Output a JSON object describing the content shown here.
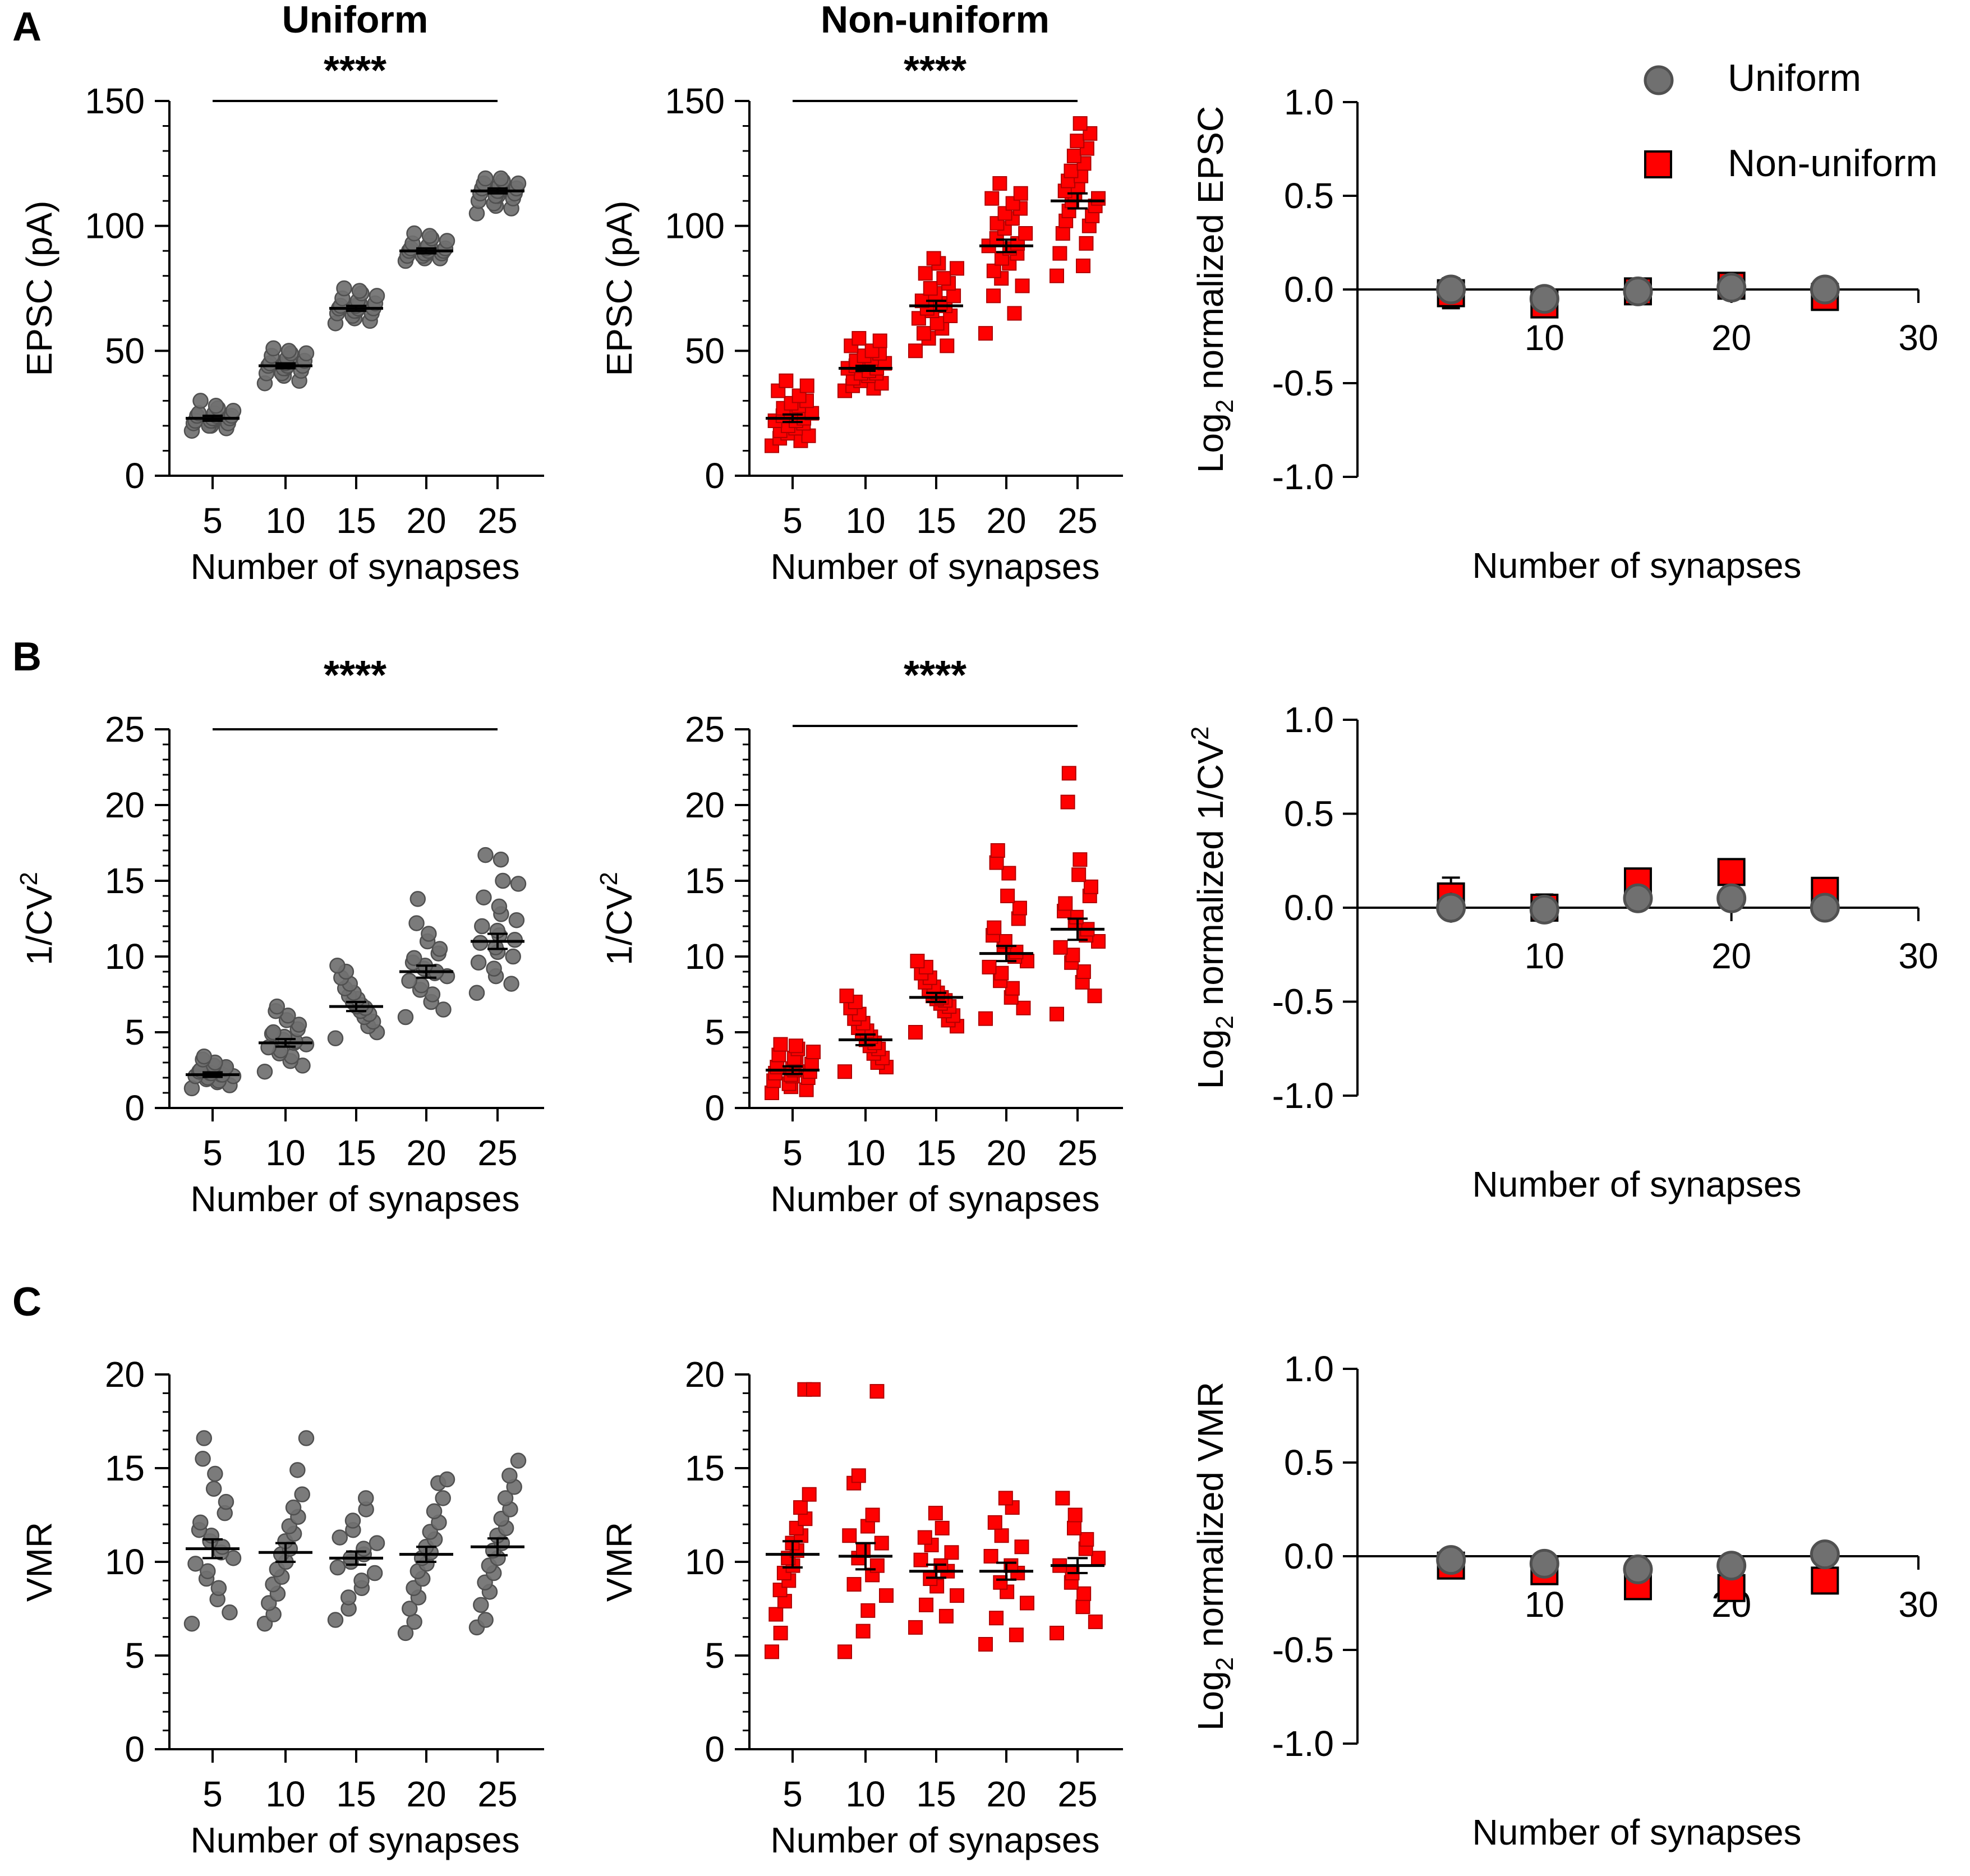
{
  "colors": {
    "uniform_fill": "#707070",
    "uniform_marker": "#505050",
    "nonuniform_fill": "#ff0000",
    "mean_bar": "#000000"
  },
  "legend": {
    "uniform": "Uniform",
    "nonuniform": "Non-uniform"
  },
  "chart_data": [
    {
      "id": "A-uniform",
      "panel": "A",
      "type": "scatter",
      "title": "Uniform",
      "significance": "****",
      "xlabel": "Number of synapses",
      "ylabel": "EPSC (pA)",
      "categories": [
        "5",
        "10",
        "15",
        "20",
        "25"
      ],
      "yticks": [
        "0",
        "50",
        "100",
        "150"
      ],
      "ylim": [
        0,
        150
      ],
      "ytick_step": 50,
      "yminor_step": 10,
      "series": "uniform",
      "means": [
        23,
        44,
        67,
        90,
        114
      ],
      "sems": [
        1,
        1,
        1,
        1,
        1
      ],
      "points": [
        [
          18,
          19,
          20,
          20,
          21,
          21,
          22,
          22,
          22,
          23,
          23,
          23,
          24,
          24,
          24,
          25,
          25,
          26,
          27,
          28,
          30
        ],
        [
          37,
          38,
          40,
          41,
          41,
          42,
          43,
          43,
          44,
          44,
          44,
          45,
          45,
          46,
          46,
          47,
          48,
          49,
          49,
          50,
          51
        ],
        [
          61,
          62,
          63,
          64,
          65,
          65,
          66,
          66,
          67,
          67,
          67,
          68,
          68,
          69,
          69,
          70,
          71,
          72,
          73,
          74,
          75
        ],
        [
          86,
          87,
          87,
          88,
          88,
          89,
          89,
          89,
          90,
          90,
          90,
          91,
          91,
          91,
          92,
          92,
          93,
          94,
          95,
          96,
          97
        ],
        [
          105,
          107,
          108,
          109,
          110,
          111,
          112,
          112,
          113,
          113,
          114,
          114,
          115,
          115,
          116,
          116,
          117,
          117,
          118,
          119,
          119
        ]
      ]
    },
    {
      "id": "A-nonuniform",
      "panel": "A",
      "type": "scatter",
      "title": "Non-uniform",
      "significance": "****",
      "xlabel": "Number of synapses",
      "ylabel": "EPSC (pA)",
      "categories": [
        "5",
        "10",
        "15",
        "20",
        "25"
      ],
      "yticks": [
        "0",
        "50",
        "100",
        "150"
      ],
      "ylim": [
        0,
        150
      ],
      "ytick_step": 50,
      "yminor_step": 10,
      "series": "nonuniform",
      "means": [
        23,
        43,
        68,
        92,
        110
      ],
      "sems": [
        1.5,
        1,
        2,
        2.5,
        3
      ],
      "points": [
        [
          12,
          14,
          15,
          16,
          17,
          18,
          19,
          20,
          21,
          22,
          22,
          23,
          24,
          25,
          26,
          27,
          28,
          29,
          30,
          32,
          34,
          36,
          38
        ],
        [
          34,
          35,
          36,
          37,
          38,
          39,
          40,
          41,
          41,
          42,
          43,
          43,
          44,
          45,
          46,
          46,
          47,
          48,
          49,
          50,
          52,
          54,
          55
        ],
        [
          50,
          52,
          55,
          57,
          59,
          61,
          63,
          64,
          66,
          67,
          68,
          69,
          70,
          72,
          73,
          75,
          77,
          79,
          81,
          83,
          85,
          87
        ],
        [
          57,
          65,
          72,
          76,
          79,
          82,
          85,
          87,
          89,
          91,
          92,
          93,
          95,
          97,
          99,
          101,
          103,
          105,
          107,
          109,
          111,
          113,
          117
        ],
        [
          80,
          84,
          89,
          93,
          97,
          100,
          102,
          104,
          106,
          108,
          110,
          111,
          113,
          114,
          116,
          118,
          120,
          122,
          125,
          128,
          131,
          134,
          137,
          141
        ]
      ]
    },
    {
      "id": "A-log2",
      "panel": "A",
      "type": "scatter",
      "ylabel_main": "Log",
      "ylabel_sub": "2",
      "ylabel_rest": " normalized EPSC",
      "xlabel": "Number of synapses",
      "xticks": [
        "10",
        "20",
        "30"
      ],
      "xlim": [
        0,
        30
      ],
      "yticks": [
        "-1.0",
        "-0.5",
        "0.0",
        "0.5",
        "1.0"
      ],
      "ylim": [
        -1,
        1
      ],
      "x": [
        5,
        10,
        15,
        20,
        25
      ],
      "uniform": [
        0.0,
        -0.05,
        -0.01,
        0.01,
        0.0
      ],
      "uniform_err": [
        0.04,
        0.02,
        0.02,
        0.02,
        0.02
      ],
      "nonuniform": [
        -0.02,
        -0.08,
        -0.01,
        0.02,
        -0.04
      ],
      "nonuniform_err": [
        0.08,
        0.02,
        0.03,
        0.03,
        0.03
      ]
    },
    {
      "id": "B-uniform",
      "panel": "B",
      "type": "scatter",
      "title": "",
      "significance": "****",
      "xlabel": "Number of synapses",
      "ylabel_main": "1/CV",
      "ylabel_sup": "2",
      "categories": [
        "5",
        "10",
        "15",
        "20",
        "25"
      ],
      "yticks": [
        "0",
        "5",
        "10",
        "15",
        "20",
        "25"
      ],
      "ylim": [
        0,
        25
      ],
      "ytick_step": 5,
      "yminor_step": 1,
      "series": "uniform",
      "means": [
        2.2,
        4.3,
        6.7,
        9.0,
        11.0
      ],
      "sems": [
        0.15,
        0.25,
        0.3,
        0.4,
        0.5
      ],
      "points": [
        [
          1.3,
          1.5,
          1.7,
          1.8,
          1.9,
          2.0,
          2.1,
          2.1,
          2.2,
          2.2,
          2.3,
          2.3,
          2.4,
          2.5,
          2.6,
          2.7,
          2.8,
          3.0,
          3.2,
          3.4
        ],
        [
          2.4,
          2.8,
          3.1,
          3.4,
          3.6,
          3.8,
          4.0,
          4.2,
          4.3,
          4.4,
          4.5,
          4.7,
          4.9,
          5.0,
          5.2,
          5.5,
          5.8,
          6.1,
          6.4,
          6.7
        ],
        [
          4.6,
          5.0,
          5.4,
          5.7,
          6.0,
          6.2,
          6.4,
          6.6,
          6.7,
          6.8,
          7.0,
          7.2,
          7.4,
          7.6,
          7.9,
          8.2,
          8.6,
          9.0,
          9.4
        ],
        [
          6.0,
          6.5,
          7.0,
          7.5,
          7.8,
          8.1,
          8.4,
          8.7,
          8.9,
          9.0,
          9.2,
          9.4,
          9.6,
          9.9,
          10.2,
          10.5,
          11.0,
          11.5,
          12.2,
          13.8
        ],
        [
          7.6,
          8.2,
          8.7,
          9.2,
          9.6,
          10.0,
          10.3,
          10.6,
          10.9,
          11.1,
          11.4,
          11.7,
          12.0,
          12.4,
          12.8,
          13.3,
          13.9,
          14.8,
          15.0,
          16.4,
          16.7
        ]
      ]
    },
    {
      "id": "B-nonuniform",
      "panel": "B",
      "type": "scatter",
      "title": "",
      "significance": "****",
      "xlabel": "Number of synapses",
      "ylabel_main": "1/CV",
      "ylabel_sup": "2",
      "categories": [
        "5",
        "10",
        "15",
        "20",
        "25"
      ],
      "yticks": [
        "0",
        "5",
        "10",
        "15",
        "20",
        "25"
      ],
      "ylim": [
        0,
        25
      ],
      "ytick_step": 5,
      "yminor_step": 1,
      "series": "nonuniform",
      "means": [
        2.5,
        4.5,
        7.3,
        10.2,
        11.8
      ],
      "sems": [
        0.25,
        0.35,
        0.3,
        0.5,
        0.7
      ],
      "points": [
        [
          1.0,
          1.2,
          1.4,
          1.6,
          1.8,
          2.0,
          2.1,
          2.2,
          2.3,
          2.4,
          2.5,
          2.6,
          2.7,
          2.9,
          3.1,
          3.3,
          3.5,
          3.7,
          3.9,
          4.1,
          4.2
        ],
        [
          2.4,
          2.7,
          3.0,
          3.3,
          3.6,
          3.9,
          4.1,
          4.3,
          4.5,
          4.7,
          4.9,
          5.1,
          5.3,
          5.6,
          5.9,
          6.2,
          6.6,
          7.0,
          7.4
        ],
        [
          5.0,
          5.4,
          5.8,
          6.1,
          6.4,
          6.7,
          6.9,
          7.1,
          7.2,
          7.3,
          7.4,
          7.6,
          7.8,
          8.0,
          8.3,
          8.6,
          8.9,
          9.3,
          9.7
        ],
        [
          5.9,
          6.6,
          7.3,
          7.9,
          8.4,
          8.9,
          9.3,
          9.7,
          10.0,
          10.3,
          10.6,
          11.0,
          11.4,
          11.9,
          12.5,
          13.2,
          14.0,
          15.5,
          16.2,
          17.0
        ],
        [
          6.2,
          7.4,
          8.3,
          9.0,
          9.6,
          10.1,
          10.6,
          11.0,
          11.4,
          11.8,
          12.2,
          12.6,
          13.0,
          13.5,
          14.0,
          14.6,
          15.4,
          16.4,
          20.2,
          22.1
        ]
      ]
    },
    {
      "id": "B-log2",
      "panel": "B",
      "type": "scatter",
      "ylabel_main": "Log",
      "ylabel_sub": "2",
      "ylabel_rest": " normalized 1/CV",
      "ylabel_sup": "2",
      "xlabel": "Number of synapses",
      "xticks": [
        "10",
        "20",
        "30"
      ],
      "xlim": [
        0,
        30
      ],
      "yticks": [
        "-1.0",
        "-0.5",
        "0.0",
        "0.5",
        "1.0"
      ],
      "ylim": [
        -1,
        1
      ],
      "x": [
        5,
        10,
        15,
        20,
        25
      ],
      "uniform": [
        0.0,
        -0.01,
        0.05,
        0.05,
        0.0
      ],
      "uniform_err": [
        0.08,
        0.06,
        0.03,
        0.03,
        0.03
      ],
      "nonuniform": [
        0.06,
        0.0,
        0.14,
        0.19,
        0.09
      ],
      "nonuniform_err": [
        0.1,
        0.07,
        0.04,
        0.04,
        0.05
      ]
    },
    {
      "id": "C-uniform",
      "panel": "C",
      "type": "scatter",
      "title": "",
      "significance": "",
      "xlabel": "Number of synapses",
      "ylabel": "VMR",
      "categories": [
        "5",
        "10",
        "15",
        "20",
        "25"
      ],
      "yticks": [
        "0",
        "5",
        "10",
        "15",
        "20"
      ],
      "ylim": [
        0,
        20
      ],
      "ytick_step": 5,
      "yminor_step": 1,
      "series": "uniform",
      "means": [
        10.7,
        10.5,
        10.2,
        10.4,
        10.8
      ],
      "sems": [
        0.5,
        0.5,
        0.35,
        0.4,
        0.45
      ],
      "points": [
        [
          6.7,
          7.3,
          8.0,
          8.6,
          9.1,
          9.5,
          9.9,
          10.2,
          10.5,
          10.8,
          11.1,
          11.4,
          11.7,
          12.1,
          12.6,
          13.2,
          13.9,
          14.7,
          15.5,
          16.6
        ],
        [
          6.7,
          7.2,
          7.8,
          8.3,
          8.8,
          9.2,
          9.6,
          10.0,
          10.4,
          10.7,
          11.1,
          11.5,
          11.9,
          12.4,
          12.9,
          13.6,
          14.9,
          16.6
        ],
        [
          6.9,
          7.5,
          8.1,
          8.6,
          9.0,
          9.4,
          9.7,
          10.0,
          10.2,
          10.4,
          10.7,
          11.0,
          11.3,
          11.7,
          12.2,
          12.8,
          13.4
        ],
        [
          6.2,
          6.8,
          7.5,
          8.1,
          8.6,
          9.1,
          9.5,
          9.9,
          10.2,
          10.5,
          10.8,
          11.2,
          11.6,
          12.1,
          12.7,
          13.4,
          14.2,
          14.4
        ],
        [
          6.5,
          6.9,
          7.7,
          8.4,
          8.9,
          9.4,
          9.8,
          10.2,
          10.6,
          11.0,
          11.4,
          11.8,
          12.3,
          12.8,
          13.4,
          14.0,
          14.6,
          15.4
        ]
      ]
    },
    {
      "id": "C-nonuniform",
      "panel": "C",
      "type": "scatter",
      "title": "",
      "significance": "",
      "xlabel": "Number of synapses",
      "ylabel": "VMR",
      "categories": [
        "5",
        "10",
        "15",
        "20",
        "25"
      ],
      "yticks": [
        "0",
        "5",
        "10",
        "15",
        "20"
      ],
      "ylim": [
        0,
        20
      ],
      "ytick_step": 5,
      "yminor_step": 1,
      "series": "nonuniform",
      "means": [
        10.4,
        10.3,
        9.5,
        9.5,
        9.8
      ],
      "sems": [
        0.7,
        0.7,
        0.35,
        0.45,
        0.4
      ],
      "points": [
        [
          5.2,
          6.2,
          7.2,
          7.9,
          8.5,
          9.0,
          9.4,
          9.8,
          10.2,
          10.6,
          11.0,
          11.4,
          11.8,
          12.3,
          12.9,
          13.6,
          19.2,
          19.2
        ],
        [
          5.2,
          6.3,
          7.4,
          8.2,
          8.8,
          9.3,
          9.8,
          10.2,
          10.6,
          11.0,
          11.4,
          11.9,
          12.5,
          14.2,
          14.6,
          19.1
        ],
        [
          6.5,
          7.1,
          7.7,
          8.2,
          8.7,
          9.1,
          9.5,
          9.8,
          10.1,
          10.5,
          10.9,
          11.3,
          11.8,
          12.6
        ],
        [
          5.6,
          6.1,
          7.0,
          7.8,
          8.4,
          8.9,
          9.4,
          9.8,
          10.3,
          10.8,
          11.4,
          12.1,
          12.9,
          13.4
        ],
        [
          6.2,
          6.8,
          7.6,
          8.3,
          8.9,
          9.4,
          9.8,
          10.2,
          10.7,
          11.2,
          11.8,
          12.5,
          13.4
        ]
      ]
    },
    {
      "id": "C-log2",
      "panel": "C",
      "type": "scatter",
      "ylabel_main": "Log",
      "ylabel_sub": "2",
      "ylabel_rest": " normalized VMR",
      "xlabel": "Number of synapses",
      "xticks": [
        "10",
        "20",
        "30"
      ],
      "xlim": [
        0,
        30
      ],
      "yticks": [
        "-1.0",
        "-0.5",
        "0.0",
        "0.5",
        "1.0"
      ],
      "ylim": [
        -1,
        1
      ],
      "x": [
        5,
        10,
        15,
        20,
        25
      ],
      "uniform": [
        -0.02,
        -0.04,
        -0.07,
        -0.05,
        0.01
      ],
      "uniform_err": [
        0.02,
        0.02,
        0.02,
        0.02,
        0.02
      ],
      "nonuniform": [
        -0.05,
        -0.08,
        -0.16,
        -0.17,
        -0.13
      ],
      "nonuniform_err": [
        0.02,
        0.02,
        0.02,
        0.02,
        0.02
      ]
    }
  ],
  "panel_labels": [
    "A",
    "B",
    "C"
  ]
}
